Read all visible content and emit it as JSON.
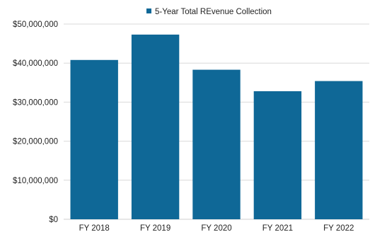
{
  "chart_data": {
    "type": "bar",
    "categories": [
      "FY 2018",
      "FY 2019",
      "FY 2020",
      "FY 2021",
      "FY 2022"
    ],
    "series": [
      {
        "name": "5-Year Total REvenue Collection",
        "values": [
          40800000,
          47300000,
          38300000,
          32800000,
          35400000
        ],
        "color": "#0f6897"
      }
    ],
    "ylim": [
      0,
      50000000
    ],
    "yticks": [
      0,
      10000000,
      20000000,
      30000000,
      40000000,
      50000000
    ],
    "ytick_labels": [
      "$0",
      "$10,000,000",
      "$20,000,000",
      "$30,000,000",
      "$40,000,000",
      "$50,000,000"
    ],
    "grid": true,
    "legend_position": "top"
  }
}
